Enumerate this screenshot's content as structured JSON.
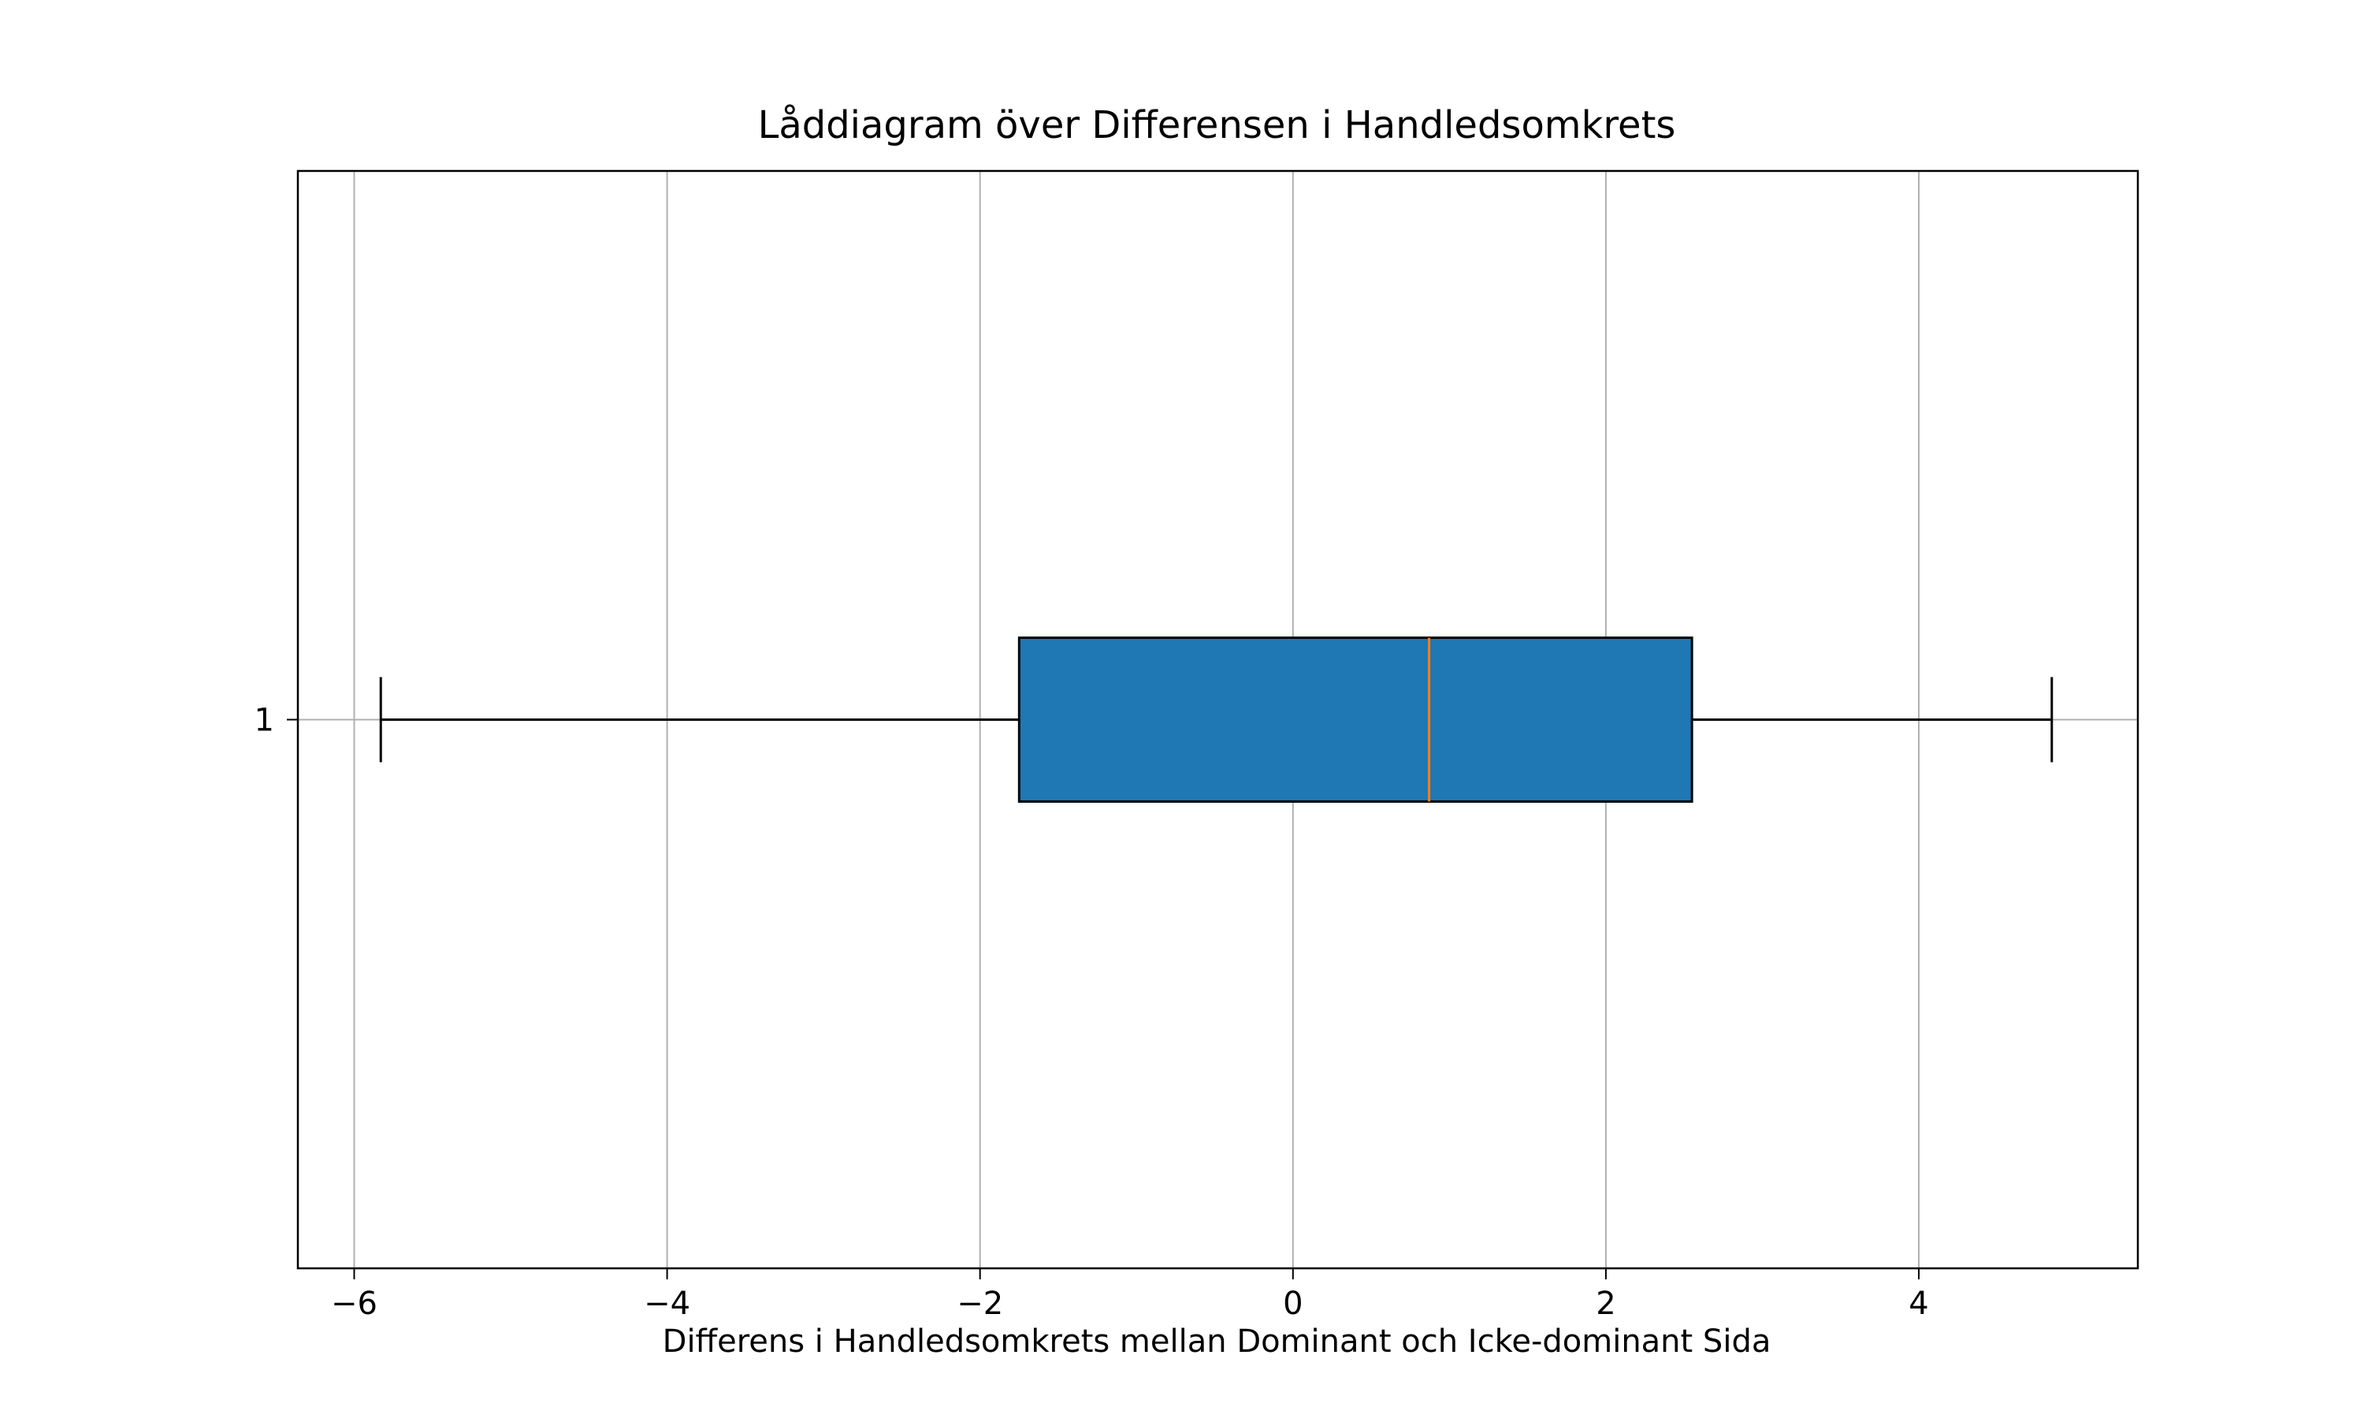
{
  "chart_data": {
    "type": "boxplot",
    "orientation": "horizontal",
    "title": "Låddiagram över Differensen i Handledsomkrets",
    "xlabel": "Differens i Handledsomkrets mellan Dominant och Icke-dominant Sida",
    "ylabel": "",
    "xlim": [
      -6.36,
      5.4
    ],
    "x_ticks": [
      -6,
      -4,
      -2,
      0,
      2,
      4
    ],
    "x_tick_labels": [
      "−6",
      "−4",
      "−2",
      "0",
      "2",
      "4"
    ],
    "categories": [
      "1"
    ],
    "boxes": [
      {
        "category": "1",
        "whisker_low": -5.83,
        "q1": -1.75,
        "median": 0.87,
        "q3": 2.55,
        "whisker_high": 4.85
      }
    ],
    "grid": true,
    "colors": {
      "box_fill": "#1f77b4",
      "median": "#ff7f0e",
      "grid": "#b0b0b0",
      "lines": "#000000"
    }
  }
}
